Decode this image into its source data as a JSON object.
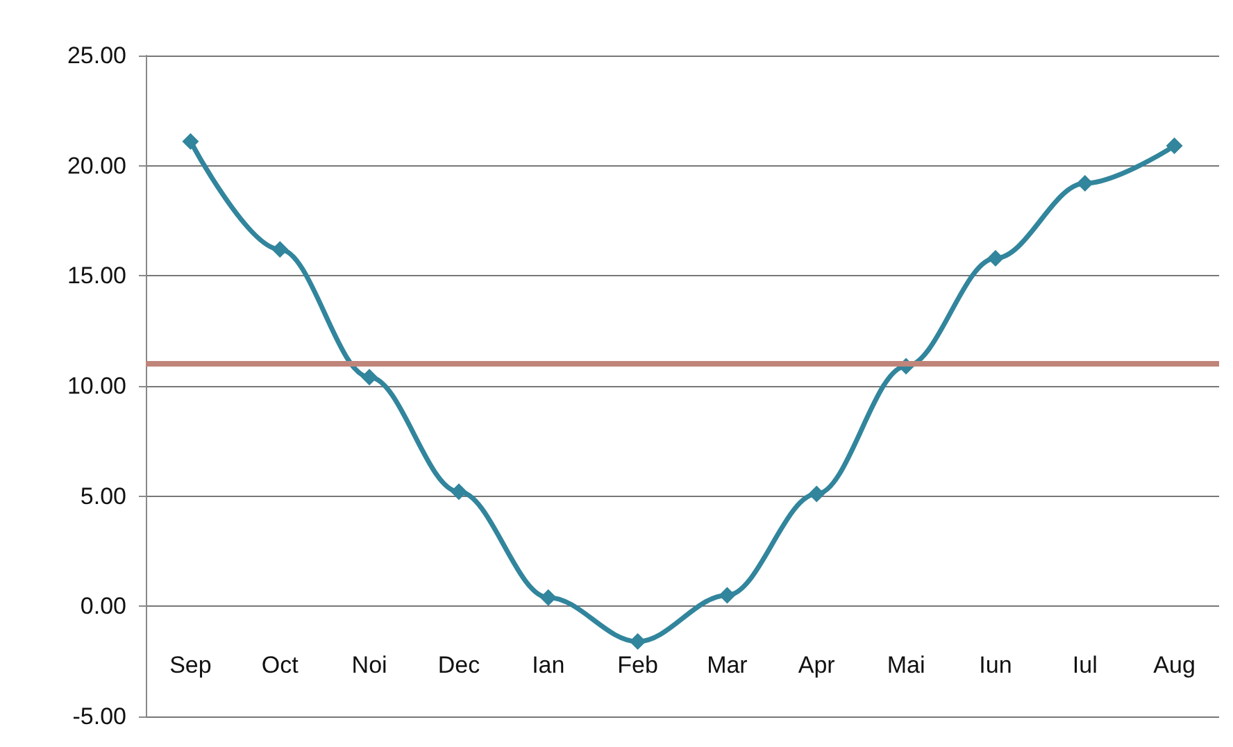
{
  "chart_data": {
    "type": "line",
    "categories": [
      "Sep",
      "Oct",
      "Noi",
      "Dec",
      "Ian",
      "Feb",
      "Mar",
      "Apr",
      "Mai",
      "Iun",
      "Iul",
      "Aug"
    ],
    "series": [
      {
        "color": "#31859c",
        "values": [
          21.1,
          16.2,
          10.4,
          5.2,
          0.4,
          -1.6,
          0.5,
          5.1,
          10.9,
          15.8,
          19.2,
          20.9
        ]
      }
    ],
    "ylim": [
      -5,
      25
    ],
    "yticks": [
      {
        "value": -5,
        "label": "-5.00"
      },
      {
        "value": 0,
        "label": "0.00"
      },
      {
        "value": 5,
        "label": "5.00"
      },
      {
        "value": 10,
        "label": "10.00"
      },
      {
        "value": 15,
        "label": "15.00"
      },
      {
        "value": 20,
        "label": "20.00"
      },
      {
        "value": 25,
        "label": "25.00"
      }
    ],
    "ref_lines": [
      {
        "axis": "y",
        "value": 11,
        "color": "#c0857a"
      }
    ],
    "grid": "y",
    "marker": "diamond"
  }
}
